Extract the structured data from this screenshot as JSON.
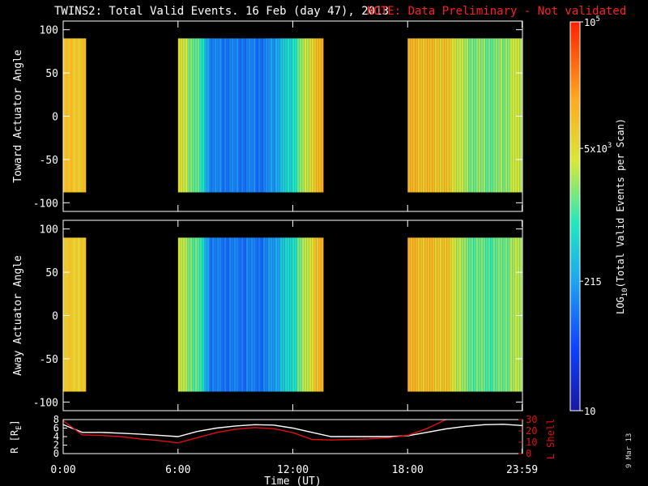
{
  "title": "TWINS2: Total Valid Events. 16 Feb (day  47), 2013",
  "note": "NOTE: Data Preliminary - Not validated",
  "plot_date": "9 Mar 13",
  "colors": {
    "background": "#000000",
    "note": "#ff2020",
    "r_line": "#ffffff",
    "lshell_line": "#e01010"
  },
  "chart_data": [
    {
      "type": "heatmap",
      "ylabel": "Toward Actuator Angle",
      "yticks": [
        "100",
        "50",
        "0",
        "-50",
        "-100"
      ],
      "ylim": [
        -110,
        110
      ],
      "xlim_hours": [
        0,
        24
      ],
      "data_y_range": [
        -88,
        90
      ],
      "data_segments_hours": [
        [
          0,
          1.2
        ],
        [
          6,
          13.6
        ],
        [
          18,
          24
        ]
      ],
      "value_profile_log10": [
        {
          "t_hours": 0.0,
          "v": 3.95
        },
        {
          "t_hours": 1.2,
          "v": 3.95
        },
        {
          "t_hours": 6.0,
          "v": 3.6
        },
        {
          "t_hours": 7.0,
          "v": 3.1
        },
        {
          "t_hours": 7.7,
          "v": 2.1
        },
        {
          "t_hours": 10.5,
          "v": 2.05
        },
        {
          "t_hours": 12.0,
          "v": 2.9
        },
        {
          "t_hours": 13.0,
          "v": 3.85
        },
        {
          "t_hours": 13.6,
          "v": 4.1
        },
        {
          "t_hours": 18.0,
          "v": 4.05
        },
        {
          "t_hours": 20.0,
          "v": 3.9
        },
        {
          "t_hours": 21.0,
          "v": 3.3
        },
        {
          "t_hours": 22.5,
          "v": 3.2
        },
        {
          "t_hours": 24.0,
          "v": 3.6
        }
      ]
    },
    {
      "type": "heatmap",
      "ylabel": "Away Actuator Angle",
      "yticks": [
        "100",
        "50",
        "0",
        "-50",
        "-100"
      ],
      "ylim": [
        -110,
        110
      ],
      "xlim_hours": [
        0,
        24
      ],
      "data_y_range": [
        -88,
        90
      ],
      "data_segments_hours": [
        [
          0,
          1.2
        ],
        [
          6,
          13.6
        ],
        [
          18,
          24
        ]
      ],
      "value_profile_log10": [
        {
          "t_hours": 0.0,
          "v": 3.85
        },
        {
          "t_hours": 1.2,
          "v": 3.9
        },
        {
          "t_hours": 6.0,
          "v": 3.5
        },
        {
          "t_hours": 7.0,
          "v": 3.1
        },
        {
          "t_hours": 7.7,
          "v": 2.05
        },
        {
          "t_hours": 10.5,
          "v": 2.05
        },
        {
          "t_hours": 12.0,
          "v": 2.9
        },
        {
          "t_hours": 13.0,
          "v": 3.8
        },
        {
          "t_hours": 13.6,
          "v": 4.1
        },
        {
          "t_hours": 18.0,
          "v": 4.05
        },
        {
          "t_hours": 20.0,
          "v": 3.9
        },
        {
          "t_hours": 21.0,
          "v": 3.2
        },
        {
          "t_hours": 22.5,
          "v": 3.1
        },
        {
          "t_hours": 24.0,
          "v": 3.5
        }
      ]
    },
    {
      "type": "line",
      "xlabel": "Time (UT)",
      "xticks": [
        {
          "label": "0:00",
          "t_hours": 0
        },
        {
          "label": "6:00",
          "t_hours": 6
        },
        {
          "label": "12:00",
          "t_hours": 12
        },
        {
          "label": "18:00",
          "t_hours": 18
        },
        {
          "label": "23:59",
          "t_hours": 23.98
        }
      ],
      "ylabel_left": "R [R",
      "ylabel_left_sub": "E",
      "ylabel_left_end": "]",
      "ylim_left": [
        0,
        8
      ],
      "yticks_left": [
        "8",
        "6",
        "4",
        "2",
        "0"
      ],
      "ylabel_right": "L Shell",
      "ylim_right": [
        0,
        30
      ],
      "yticks_right": [
        "30",
        "20",
        "10",
        "0"
      ],
      "series": [
        {
          "axis": "left",
          "x_hours": [
            0,
            1,
            2,
            3,
            4,
            5,
            6,
            7,
            8,
            9,
            10,
            11,
            12,
            13,
            14,
            15,
            16,
            17,
            18,
            19,
            20,
            21,
            22,
            23,
            24
          ],
          "y": [
            6.8,
            5.0,
            5.0,
            4.8,
            4.6,
            4.3,
            4.0,
            5.2,
            6.0,
            6.5,
            6.8,
            6.7,
            6.0,
            5.0,
            4.0,
            4.0,
            4.0,
            4.0,
            4.2,
            5.0,
            5.8,
            6.4,
            6.8,
            6.9,
            6.6
          ]
        },
        {
          "axis": "right",
          "x_hours": [
            0,
            1,
            2,
            3,
            4,
            5,
            6,
            7,
            8,
            9,
            10,
            11,
            12,
            13,
            14,
            15,
            16,
            17,
            18,
            19,
            20,
            20.5
          ],
          "y": [
            29,
            16.5,
            16.0,
            15.0,
            13.0,
            11.5,
            9.5,
            14.0,
            18.5,
            21.5,
            23.0,
            22.0,
            18.5,
            12.5,
            12.0,
            12.5,
            13.0,
            14.0,
            16.0,
            22.0,
            30,
            34
          ]
        }
      ]
    }
  ],
  "colorbar": {
    "label_main": "LOG",
    "label_sub": "10",
    "label_rest": "(Total Valid Events per Scan)",
    "range_log10": [
      1,
      5
    ],
    "ticks": [
      {
        "value": 5,
        "base": "10",
        "exp": "5"
      },
      {
        "value": 3.699,
        "base": "5x10",
        "exp": "3"
      },
      {
        "value": 2.332,
        "base": "215",
        "exp": ""
      },
      {
        "value": 1,
        "base": "10",
        "exp": ""
      }
    ]
  }
}
